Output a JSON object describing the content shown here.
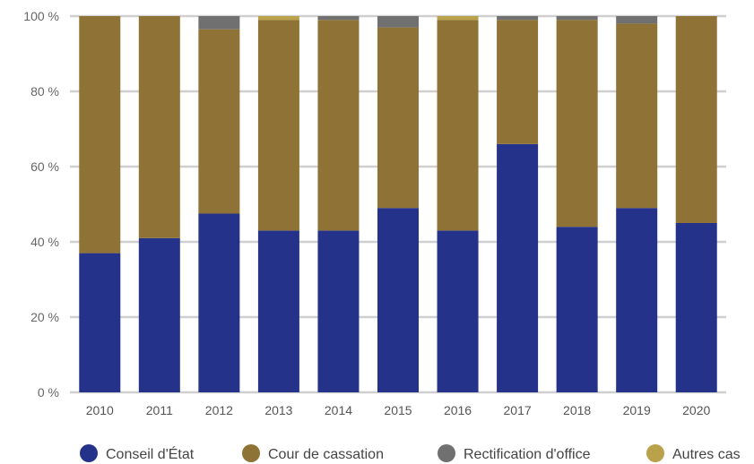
{
  "chart_data": {
    "type": "bar",
    "stacked": true,
    "categories": [
      "2010",
      "2011",
      "2012",
      "2013",
      "2014",
      "2015",
      "2016",
      "2017",
      "2018",
      "2019",
      "2020"
    ],
    "series": [
      {
        "name": "Conseil d'État",
        "color": "#25328a",
        "values": [
          37,
          41,
          47.5,
          43,
          43,
          49,
          43,
          66,
          44,
          49,
          45
        ]
      },
      {
        "name": "Cour de cassation",
        "color": "#8f7235",
        "values": [
          63,
          59,
          49,
          56,
          56,
          48,
          56,
          33,
          55,
          49,
          55
        ]
      },
      {
        "name": "Rectification d'office",
        "color": "#707070",
        "values": [
          0,
          0,
          3.5,
          0,
          1,
          3,
          0,
          1,
          1,
          2,
          0
        ]
      },
      {
        "name": "Autres cas",
        "color": "#b9a24a",
        "values": [
          0,
          0,
          0,
          1,
          0,
          0,
          1,
          0,
          0,
          0,
          0
        ]
      }
    ],
    "yticks": [
      "0 %",
      "20 %",
      "40 %",
      "60 %",
      "80 %",
      "100 %"
    ],
    "ytick_values": [
      0,
      20,
      40,
      60,
      80,
      100
    ],
    "ylim": [
      0,
      100
    ],
    "grid": true,
    "legend_position": "bottom"
  }
}
